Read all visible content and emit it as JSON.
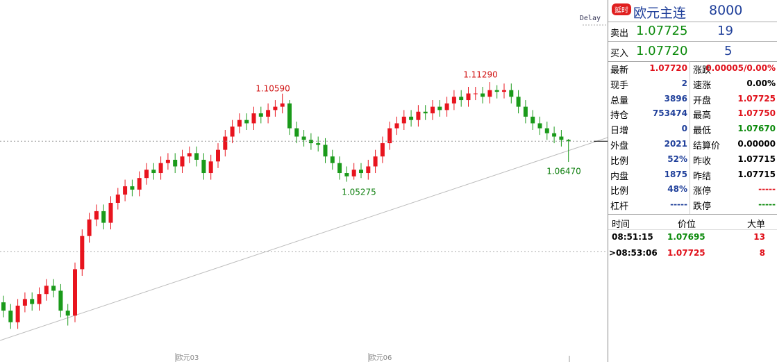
{
  "chart_data": {
    "type": "candlestick",
    "delay_label": "Delay",
    "annotations": [
      "1.10590",
      "1.05275",
      "1.11290",
      "1.06470"
    ],
    "x_labels": [
      "欧元03",
      "欧元06"
    ],
    "ylim": [
      0.957,
      1.154
    ],
    "up_color": "#e8141e",
    "down_color": "#1a9a1a",
    "open": [
      0.98,
      0.975,
      0.968,
      0.978,
      0.982,
      0.979,
      0.985,
      0.99,
      0.987,
      0.975,
      0.972,
      1.0,
      1.02,
      1.03,
      1.035,
      1.028,
      1.04,
      1.045,
      1.05,
      1.048,
      1.055,
      1.06,
      1.058,
      1.064,
      1.066,
      1.062,
      1.068,
      1.07,
      1.066,
      1.058,
      1.065,
      1.072,
      1.08,
      1.086,
      1.09,
      1.088,
      1.094,
      1.092,
      1.096,
      1.098,
      1.1,
      1.085,
      1.08,
      1.078,
      1.076,
      1.075,
      1.068,
      1.064,
      1.058,
      1.056,
      1.06,
      1.058,
      1.062,
      1.068,
      1.076,
      1.085,
      1.088,
      1.092,
      1.09,
      1.095,
      1.094,
      1.098,
      1.096,
      1.1,
      1.104,
      1.102,
      1.106,
      1.106,
      1.104,
      1.108,
      1.107,
      1.108,
      1.104,
      1.098,
      1.092,
      1.088,
      1.085,
      1.082,
      1.08,
      1.078
    ],
    "high": [
      0.984,
      0.979,
      0.982,
      0.986,
      0.986,
      0.989,
      0.994,
      0.994,
      0.991,
      0.979,
      1.004,
      1.024,
      1.034,
      1.039,
      1.039,
      1.044,
      1.049,
      1.054,
      1.054,
      1.059,
      1.064,
      1.064,
      1.068,
      1.07,
      1.07,
      1.072,
      1.074,
      1.074,
      1.07,
      1.069,
      1.076,
      1.084,
      1.09,
      1.094,
      1.094,
      1.098,
      1.098,
      1.1,
      1.102,
      1.1059,
      1.102,
      1.089,
      1.084,
      1.082,
      1.08,
      1.079,
      1.072,
      1.068,
      1.062,
      1.064,
      1.064,
      1.066,
      1.072,
      1.08,
      1.089,
      1.092,
      1.096,
      1.096,
      1.099,
      1.099,
      1.102,
      1.102,
      1.104,
      1.108,
      1.108,
      1.11,
      1.11,
      1.11,
      1.1129,
      1.111,
      1.112,
      1.112,
      1.108,
      1.102,
      1.096,
      1.092,
      1.089,
      1.086,
      1.084,
      1.0785
    ],
    "low": [
      0.971,
      0.964,
      0.964,
      0.974,
      0.975,
      0.975,
      0.981,
      0.983,
      0.971,
      0.966,
      0.968,
      0.996,
      1.016,
      1.026,
      1.024,
      1.024,
      1.036,
      1.041,
      1.044,
      1.044,
      1.051,
      1.054,
      1.054,
      1.06,
      1.058,
      1.058,
      1.064,
      1.062,
      1.054,
      1.054,
      1.061,
      1.068,
      1.076,
      1.082,
      1.084,
      1.084,
      1.088,
      1.088,
      1.092,
      1.094,
      1.081,
      1.076,
      1.074,
      1.072,
      1.071,
      1.064,
      1.06,
      1.054,
      1.05275,
      1.054,
      1.055,
      1.054,
      1.058,
      1.064,
      1.072,
      1.081,
      1.084,
      1.086,
      1.086,
      1.09,
      1.09,
      1.092,
      1.092,
      1.096,
      1.098,
      1.098,
      1.102,
      1.1,
      1.1,
      1.103,
      1.103,
      1.1,
      1.094,
      1.088,
      1.084,
      1.081,
      1.078,
      1.076,
      1.074,
      1.0647
    ],
    "close": [
      0.975,
      0.968,
      0.978,
      0.982,
      0.979,
      0.985,
      0.99,
      0.987,
      0.975,
      0.972,
      1.0,
      1.02,
      1.03,
      1.035,
      1.028,
      1.04,
      1.045,
      1.05,
      1.048,
      1.055,
      1.06,
      1.058,
      1.064,
      1.066,
      1.062,
      1.068,
      1.07,
      1.066,
      1.058,
      1.065,
      1.072,
      1.08,
      1.086,
      1.09,
      1.088,
      1.094,
      1.092,
      1.096,
      1.098,
      1.1,
      1.085,
      1.08,
      1.078,
      1.076,
      1.075,
      1.068,
      1.064,
      1.058,
      1.056,
      1.06,
      1.058,
      1.062,
      1.068,
      1.076,
      1.085,
      1.088,
      1.092,
      1.09,
      1.095,
      1.094,
      1.098,
      1.096,
      1.1,
      1.104,
      1.102,
      1.106,
      1.106,
      1.104,
      1.108,
      1.107,
      1.108,
      1.104,
      1.098,
      1.092,
      1.088,
      1.085,
      1.082,
      1.08,
      1.078,
      1.0772
    ]
  },
  "quote": {
    "badge": "延时",
    "name": "欧元主连",
    "code": "8000",
    "sell": [
      "卖出",
      "1.07725",
      "19"
    ],
    "buy": [
      "买入",
      "1.07720",
      "5"
    ],
    "stats": [
      [
        "最新",
        "1.07720",
        "涨跌",
        "0.00005/0.00%"
      ],
      [
        "现手",
        "2",
        "速涨",
        "0.00%"
      ],
      [
        "总量",
        "3896",
        "开盘",
        "1.07725"
      ],
      [
        "持仓",
        "753474",
        "最高",
        "1.07750"
      ],
      [
        "日增",
        "0",
        "最低",
        "1.07670"
      ],
      [
        "外盘",
        "2021",
        "结算价",
        "0.00000"
      ],
      [
        "比例",
        "52%",
        "昨收",
        "1.07715"
      ],
      [
        "内盘",
        "1875",
        "昨结",
        "1.07715"
      ],
      [
        "比例",
        "48%",
        "涨停",
        "-----"
      ],
      [
        "杠杆",
        "-----",
        "跌停",
        "-----"
      ]
    ],
    "trades": {
      "headers": [
        "时间",
        "价位",
        "大单"
      ],
      "rows": [
        [
          "08:51:15",
          "1.07695",
          "13"
        ],
        [
          ">08:53:06",
          "1.07725",
          "8"
        ]
      ]
    }
  }
}
